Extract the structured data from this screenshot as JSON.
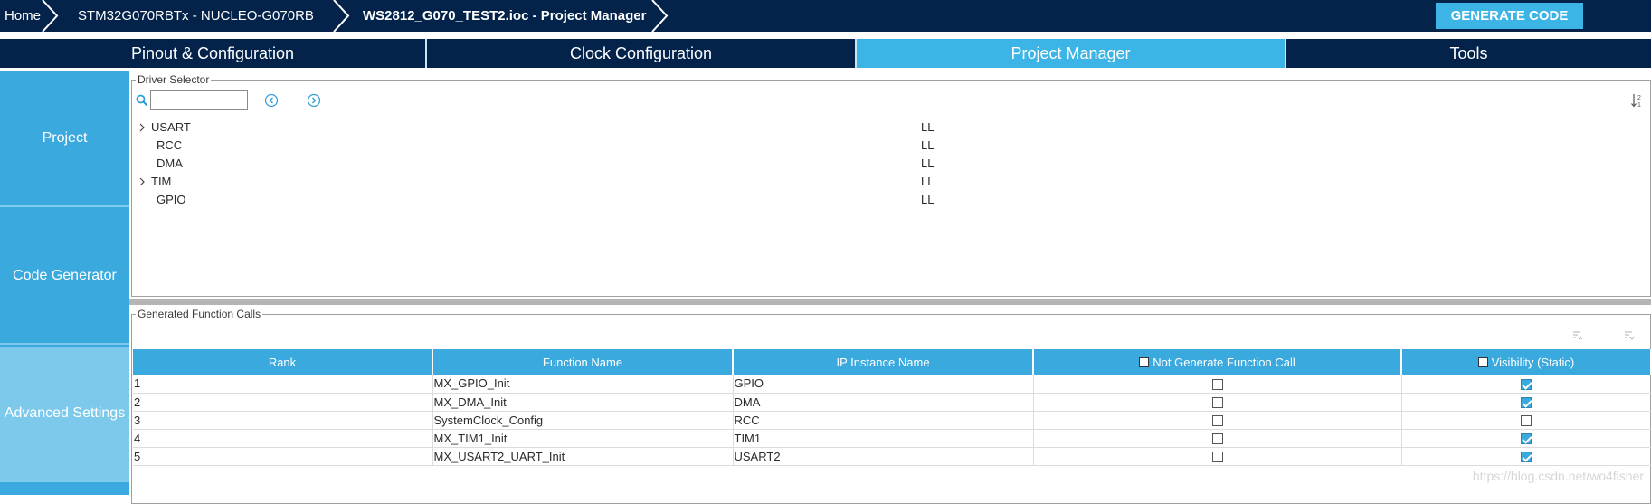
{
  "breadcrumb": {
    "home": "Home",
    "board": "STM32G070RBTx  -  NUCLEO-G070RB",
    "file": "WS2812_G070_TEST2.ioc - Project Manager"
  },
  "generate_button": "GENERATE CODE",
  "tabs": [
    {
      "label": "Pinout & Configuration"
    },
    {
      "label": "Clock Configuration"
    },
    {
      "label": "Project Manager",
      "active": true
    },
    {
      "label": "Tools"
    }
  ],
  "sidebar": {
    "items": [
      {
        "label": "Project"
      },
      {
        "label": "Code Generator"
      },
      {
        "label": "Advanced Settings",
        "active": true
      }
    ]
  },
  "driver_selector": {
    "title": "Driver Selector",
    "search_value": "",
    "rows": [
      {
        "name": "USART",
        "driver": "LL",
        "expandable": true
      },
      {
        "name": "RCC",
        "driver": "LL",
        "expandable": false
      },
      {
        "name": "DMA",
        "driver": "LL",
        "expandable": false
      },
      {
        "name": "TIM",
        "driver": "LL",
        "expandable": true
      },
      {
        "name": "GPIO",
        "driver": "LL",
        "expandable": false
      }
    ]
  },
  "function_calls": {
    "title": "Generated Function Calls",
    "headers": {
      "rank": "Rank",
      "function_name": "Function Name",
      "ip_instance": "IP Instance Name",
      "not_generate": "Not Generate Function Call",
      "visibility": "Visibility (Static)"
    },
    "rows": [
      {
        "rank": "1",
        "function": "MX_GPIO_Init",
        "ip": "GPIO",
        "not_generate": false,
        "visibility": true
      },
      {
        "rank": "2",
        "function": "MX_DMA_Init",
        "ip": "DMA",
        "not_generate": false,
        "visibility": true
      },
      {
        "rank": "3",
        "function": "SystemClock_Config",
        "ip": "RCC",
        "not_generate": false,
        "visibility": false
      },
      {
        "rank": "4",
        "function": "MX_TIM1_Init",
        "ip": "TIM1",
        "not_generate": false,
        "visibility": true
      },
      {
        "rank": "5",
        "function": "MX_USART2_UART_Init",
        "ip": "USART2",
        "not_generate": false,
        "visibility": true
      }
    ]
  },
  "watermark": "https://blog.csdn.net/wo4fisher",
  "colors": {
    "navy": "#03234b",
    "accent": "#3cb4e6",
    "sidebar": "#3aa9de",
    "sidebar_active": "#7cc9ec"
  }
}
